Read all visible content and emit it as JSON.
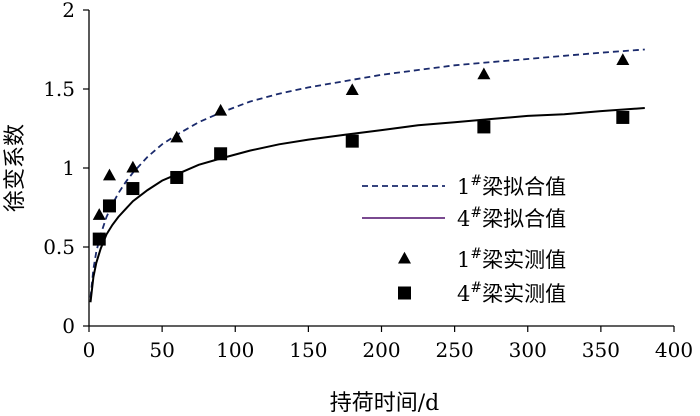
{
  "chart_data": {
    "type": "scatter",
    "xlabel": "持荷时间/d",
    "ylabel": "徐变系数",
    "xlim": [
      0,
      400
    ],
    "ylim": [
      0,
      2
    ],
    "xticks": [
      0,
      50,
      100,
      150,
      200,
      250,
      300,
      350,
      400
    ],
    "yticks": [
      0,
      0.5,
      1,
      1.5,
      2
    ],
    "ytick_labels": [
      "0",
      "0.5",
      "1",
      "1.5",
      "2"
    ],
    "grid": false,
    "legend_position": "center-right",
    "series": [
      {
        "name": "1#梁拟合值",
        "name_base": "1",
        "name_sup": "#",
        "name_rest": "梁拟合值",
        "kind": "line",
        "style": "dashed",
        "color": "#1a2a6c",
        "x": [
          1,
          3,
          5,
          8,
          12,
          16,
          20,
          25,
          30,
          40,
          50,
          60,
          75,
          90,
          110,
          130,
          150,
          175,
          200,
          225,
          250,
          275,
          300,
          325,
          350,
          380
        ],
        "y": [
          0.18,
          0.36,
          0.47,
          0.58,
          0.69,
          0.77,
          0.84,
          0.91,
          0.97,
          1.07,
          1.15,
          1.21,
          1.29,
          1.35,
          1.42,
          1.47,
          1.51,
          1.55,
          1.59,
          1.62,
          1.65,
          1.67,
          1.69,
          1.71,
          1.73,
          1.75
        ]
      },
      {
        "name": "4#梁拟合值",
        "name_base": "4",
        "name_sup": "#",
        "name_rest": "梁拟合值",
        "kind": "line",
        "style": "solid",
        "color": "#000000",
        "legend_color": "#7a4a90",
        "x": [
          1,
          3,
          5,
          8,
          12,
          16,
          20,
          25,
          30,
          40,
          50,
          60,
          75,
          90,
          110,
          130,
          150,
          175,
          200,
          225,
          250,
          275,
          300,
          325,
          350,
          380
        ],
        "y": [
          0.15,
          0.31,
          0.4,
          0.49,
          0.58,
          0.64,
          0.69,
          0.74,
          0.79,
          0.86,
          0.92,
          0.96,
          1.02,
          1.06,
          1.11,
          1.15,
          1.18,
          1.21,
          1.24,
          1.27,
          1.29,
          1.31,
          1.33,
          1.34,
          1.36,
          1.38
        ]
      },
      {
        "name": "1#梁实测值",
        "name_base": "1",
        "name_sup": "#",
        "name_rest": "梁实测值",
        "kind": "scatter",
        "marker": "triangle",
        "color": "#000000",
        "x": [
          7,
          14,
          30,
          60,
          90,
          180,
          270,
          365
        ],
        "y": [
          0.7,
          0.95,
          1.0,
          1.19,
          1.36,
          1.49,
          1.59,
          1.68
        ]
      },
      {
        "name": "4#梁实测值",
        "name_base": "4",
        "name_sup": "#",
        "name_rest": "梁实测值",
        "kind": "scatter",
        "marker": "square",
        "color": "#000000",
        "x": [
          7,
          14,
          30,
          60,
          90,
          180,
          270,
          365
        ],
        "y": [
          0.55,
          0.76,
          0.87,
          0.94,
          1.09,
          1.17,
          1.26,
          1.32
        ]
      }
    ]
  }
}
